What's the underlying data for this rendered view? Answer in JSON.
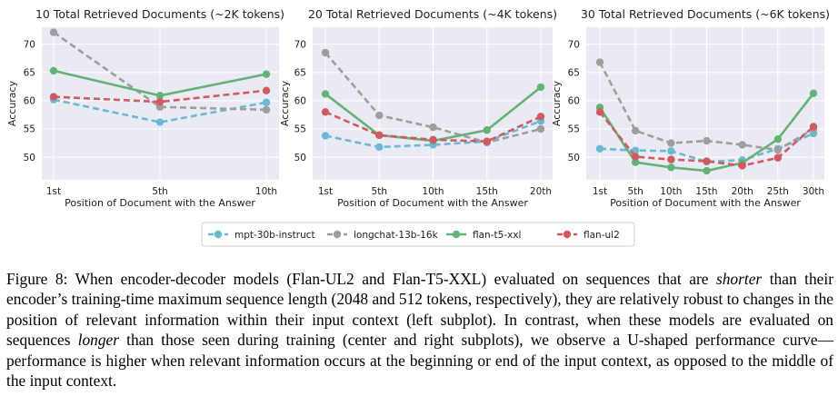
{
  "chart_data": [
    {
      "type": "line",
      "title": "10 Total Retrieved Documents (~2K tokens)",
      "xlabel": "Position of Document with the Answer",
      "ylabel": "Accuracy",
      "categories": [
        "1st",
        "5th",
        "10th"
      ],
      "yticks": [
        50,
        55,
        60,
        65,
        70
      ],
      "ylim": [
        46,
        73
      ],
      "series": [
        {
          "name": "mpt-30b-instruct",
          "values": [
            60.2,
            56.2,
            59.7
          ]
        },
        {
          "name": "longchat-13b-16k",
          "values": [
            72.1,
            58.9,
            58.4
          ]
        },
        {
          "name": "flan-t5-xxl",
          "values": [
            65.3,
            60.9,
            64.7
          ]
        },
        {
          "name": "flan-ul2",
          "values": [
            60.7,
            59.8,
            61.8
          ]
        }
      ]
    },
    {
      "type": "line",
      "title": "20 Total Retrieved Documents (~4K tokens)",
      "xlabel": "Position of Document with the Answer",
      "ylabel": "Accuracy",
      "categories": [
        "1st",
        "5th",
        "10th",
        "15th",
        "20th"
      ],
      "yticks": [
        50,
        55,
        60,
        65,
        70
      ],
      "ylim": [
        46,
        73
      ],
      "series": [
        {
          "name": "mpt-30b-instruct",
          "values": [
            53.8,
            51.8,
            52.2,
            52.8,
            56.4
          ]
        },
        {
          "name": "longchat-13b-16k",
          "values": [
            68.5,
            57.4,
            55.3,
            52.6,
            55.0
          ]
        },
        {
          "name": "flan-t5-xxl",
          "values": [
            61.2,
            53.9,
            52.9,
            54.8,
            62.4
          ]
        },
        {
          "name": "flan-ul2",
          "values": [
            58.0,
            53.9,
            53.1,
            52.8,
            57.2
          ]
        }
      ]
    },
    {
      "type": "line",
      "title": "30 Total Retrieved Documents (~6K tokens)",
      "xlabel": "Position of Document with the Answer",
      "ylabel": "Accuracy",
      "categories": [
        "1st",
        "5th",
        "10th",
        "15th",
        "20th",
        "25th",
        "30th"
      ],
      "yticks": [
        50,
        55,
        60,
        65,
        70
      ],
      "ylim": [
        46,
        73
      ],
      "series": [
        {
          "name": "mpt-30b-instruct",
          "values": [
            51.5,
            51.2,
            51.1,
            49.2,
            49.5,
            51.5,
            54.2
          ]
        },
        {
          "name": "longchat-13b-16k",
          "values": [
            66.8,
            54.7,
            52.5,
            52.9,
            52.2,
            51.3,
            55.0
          ]
        },
        {
          "name": "flan-t5-xxl",
          "values": [
            58.8,
            49.1,
            48.2,
            47.6,
            49.0,
            53.2,
            61.3
          ]
        },
        {
          "name": "flan-ul2",
          "values": [
            58.0,
            50.1,
            49.6,
            49.3,
            48.5,
            49.9,
            55.4
          ]
        }
      ]
    }
  ],
  "legend": {
    "items": [
      {
        "name": "mpt-30b-instruct",
        "color": "#6cb9d6"
      },
      {
        "name": "longchat-13b-16k",
        "color": "#9e9e9e"
      },
      {
        "name": "flan-t5-xxl",
        "color": "#63b278"
      },
      {
        "name": "flan-ul2",
        "color": "#cf5a64"
      }
    ]
  },
  "caption": {
    "label": "Figure 8:",
    "t1": " When encoder-decoder models (Flan-UL2 and Flan-T5-XXL) evaluated on sequences that are ",
    "em1": "shorter",
    "t2": " than their encoder’s training-time maximum sequence length (2048 and 512 tokens, respectively), they are relatively robust to changes in the position of relevant information within their input context (left subplot). In contrast, when these models are evaluated on sequences ",
    "em2": "longer",
    "t3": " than those seen during training (center and right subplots), we observe a U-shaped performance curve—performance is higher when relevant information occurs at the beginning or end of the input context, as opposed to the middle of the input context."
  }
}
